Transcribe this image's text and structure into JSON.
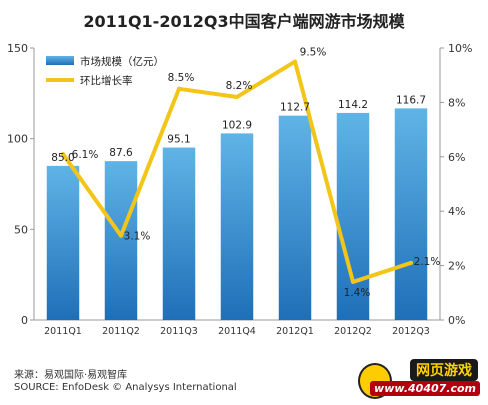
{
  "chart_data": {
    "type": "bar",
    "title": "2011Q1-2012Q3中国客户端网游市场规模",
    "categories": [
      "2011Q1",
      "2011Q2",
      "2011Q3",
      "2011Q4",
      "2012Q1",
      "2012Q2",
      "2012Q3"
    ],
    "series": [
      {
        "name": "市场规模（亿元）",
        "type": "bar",
        "axis": "left",
        "values": [
          85.0,
          87.6,
          95.1,
          102.9,
          112.7,
          114.2,
          116.7
        ],
        "labels": [
          "85.0",
          "87.6",
          "95.1",
          "102.9",
          "112.7",
          "114.2",
          "116.7"
        ]
      },
      {
        "name": "环比增长率",
        "type": "line",
        "axis": "right",
        "values": [
          6.1,
          3.1,
          8.5,
          8.2,
          9.5,
          1.4,
          2.1
        ],
        "labels": [
          "6.1%",
          "3.1%",
          "8.5%",
          "8.2%",
          "9.5%",
          "1.4%",
          "2.1%"
        ]
      }
    ],
    "y_left": {
      "min": 0,
      "max": 150,
      "ticks": [
        "0",
        "50",
        "100",
        "150"
      ]
    },
    "y_right": {
      "min": 0,
      "max": 10,
      "ticks": [
        "0%",
        "2%",
        "4%",
        "6%",
        "8%",
        "10%"
      ]
    },
    "grid": false,
    "legend": "top-left",
    "colors": {
      "bar_top": "#5fb4e6",
      "bar_bottom": "#1f6fb8",
      "line": "#f2c518"
    }
  },
  "source": {
    "line1": "来源：易观国际·易观智库",
    "line2": "SOURCE: EnfoDesk © Analysys International"
  },
  "watermark": {
    "top": "网页游戏",
    "bottom": "www.40407.com"
  }
}
